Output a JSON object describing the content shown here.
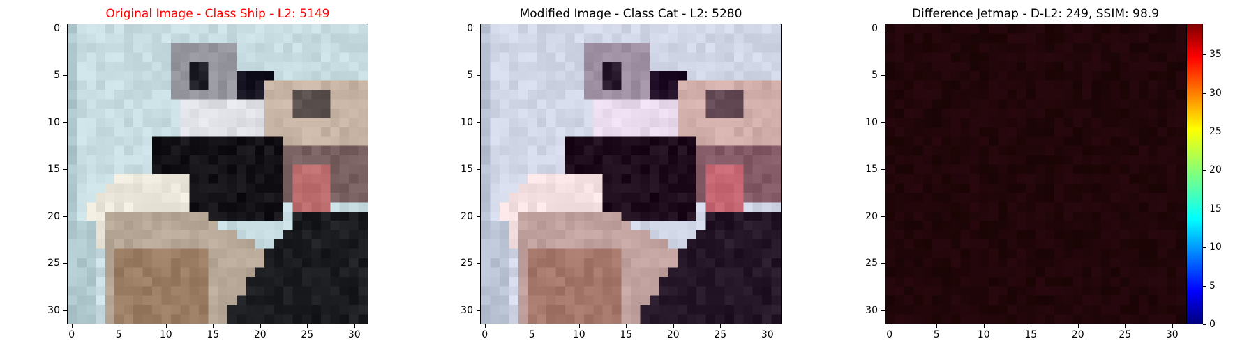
{
  "panels": [
    {
      "title": "Original Image - Class Ship - L2: 5149",
      "title_color": "#ff0000"
    },
    {
      "title": "Modified Image - Class Cat - L2: 5280",
      "title_color": "#000000"
    },
    {
      "title": "Difference Jetmap - D-L2: 249, SSIM: 98.9",
      "title_color": "#000000"
    }
  ],
  "axis": {
    "x_ticks": [
      "0",
      "5",
      "10",
      "15",
      "20",
      "25",
      "30"
    ],
    "y_ticks": [
      "0",
      "5",
      "10",
      "15",
      "20",
      "25",
      "30"
    ],
    "tick_values": [
      0,
      5,
      10,
      15,
      20,
      25,
      30
    ],
    "pixel_range": [
      0,
      31
    ]
  },
  "colorbar": {
    "ticks": [
      "0",
      "5",
      "10",
      "15",
      "20",
      "25",
      "30",
      "35"
    ],
    "tick_values": [
      0,
      5,
      10,
      15,
      20,
      25,
      30,
      35
    ],
    "range": [
      0,
      39
    ],
    "colormap": "jet"
  },
  "colors": {
    "sky": "#c8dde2",
    "boat_dark": "#141216",
    "boat_hull": "#b8a898",
    "boat_white": "#ece8dc",
    "water_dark": "#1a1c20",
    "diff_bg": "#1a0404"
  }
}
